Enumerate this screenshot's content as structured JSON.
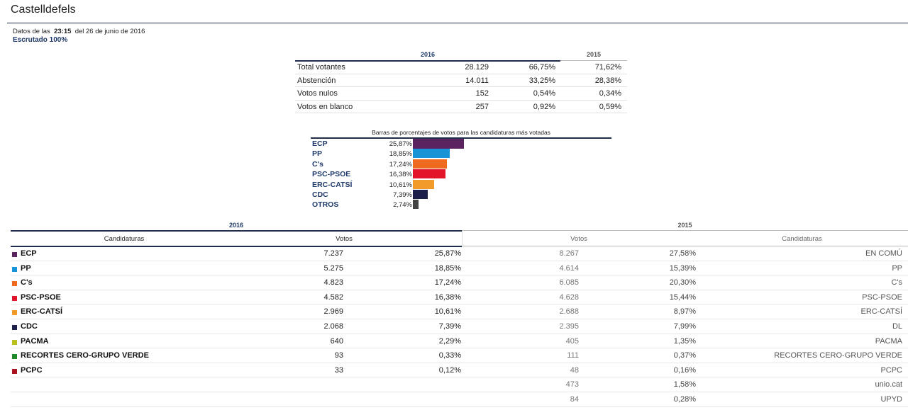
{
  "header": {
    "title": "Castelldefels",
    "data_prefix": "Datos de las",
    "time": "23:15",
    "date_text": "del 26 de junio de 2016",
    "scrutiny": "Escrutado 100%"
  },
  "summary": {
    "year_current": "2016",
    "year_previous": "2015",
    "rows": [
      {
        "label": "Total votantes",
        "count": "28.129",
        "pct_2016": "66,75%",
        "pct_2015": "71,62%"
      },
      {
        "label": "Abstención",
        "count": "14.011",
        "pct_2016": "33,25%",
        "pct_2015": "28,38%"
      },
      {
        "label": "Votos nulos",
        "count": "152",
        "pct_2016": "0,54%",
        "pct_2015": "0,34%"
      },
      {
        "label": "Votos en blanco",
        "count": "257",
        "pct_2016": "0,92%",
        "pct_2015": "0,59%"
      }
    ]
  },
  "chart_data": {
    "type": "bar",
    "title": "Barras de porcentajes de votos para las candidaturas más votadas",
    "categories": [
      "ECP",
      "PP",
      "C's",
      "PSC-PSOE",
      "ERC-CATSÍ",
      "CDC",
      "OTROS"
    ],
    "labels": [
      "25,87%",
      "18,85%",
      "17,24%",
      "16,38%",
      "10,61%",
      "7,39%",
      "2,74%"
    ],
    "values": [
      25.87,
      18.85,
      17.24,
      16.38,
      10.61,
      7.39,
      2.74
    ],
    "colors": [
      "#5b2360",
      "#1794d6",
      "#ef6a1d",
      "#e3152a",
      "#f29b2a",
      "#1c1f4a",
      "#444444"
    ],
    "xlim": [
      0,
      25.87
    ]
  },
  "results": {
    "year_current": "2016",
    "year_previous": "2015",
    "col_candidaturas": "Candidaturas",
    "col_votos": "Votos",
    "rows": [
      {
        "party": "ECP",
        "color": "#5b2360",
        "votes_2016": "7.237",
        "pct_2016": "25,87%",
        "votes_2015": "8.267",
        "pct_2015": "27,58%",
        "party_2015": "EN COMÚ"
      },
      {
        "party": "PP",
        "color": "#1794d6",
        "votes_2016": "5.275",
        "pct_2016": "18,85%",
        "votes_2015": "4.614",
        "pct_2015": "15,39%",
        "party_2015": "PP"
      },
      {
        "party": "C's",
        "color": "#ef6a1d",
        "votes_2016": "4.823",
        "pct_2016": "17,24%",
        "votes_2015": "6.085",
        "pct_2015": "20,30%",
        "party_2015": "C's"
      },
      {
        "party": "PSC-PSOE",
        "color": "#e3152a",
        "votes_2016": "4.582",
        "pct_2016": "16,38%",
        "votes_2015": "4.628",
        "pct_2015": "15,44%",
        "party_2015": "PSC-PSOE"
      },
      {
        "party": "ERC-CATSÍ",
        "color": "#f29b2a",
        "votes_2016": "2.969",
        "pct_2016": "10,61%",
        "votes_2015": "2.688",
        "pct_2015": "8,97%",
        "party_2015": "ERC-CATSÍ"
      },
      {
        "party": "CDC",
        "color": "#1c1f4a",
        "votes_2016": "2.068",
        "pct_2016": "7,39%",
        "votes_2015": "2.395",
        "pct_2015": "7,99%",
        "party_2015": "DL"
      },
      {
        "party": "PACMA",
        "color": "#b9bf1f",
        "votes_2016": "640",
        "pct_2016": "2,29%",
        "votes_2015": "405",
        "pct_2015": "1,35%",
        "party_2015": "PACMA"
      },
      {
        "party": "RECORTES CERO-GRUPO VERDE",
        "color": "#1f8a2a",
        "votes_2016": "93",
        "pct_2016": "0,33%",
        "votes_2015": "111",
        "pct_2015": "0,37%",
        "party_2015": "RECORTES CERO-GRUPO VERDE"
      },
      {
        "party": "PCPC",
        "color": "#a8141f",
        "votes_2016": "33",
        "pct_2016": "0,12%",
        "votes_2015": "48",
        "pct_2015": "0,16%",
        "party_2015": "PCPC"
      },
      {
        "party": "",
        "color": "",
        "votes_2016": "",
        "pct_2016": "",
        "votes_2015": "473",
        "pct_2015": "1,58%",
        "party_2015": "unio.cat"
      },
      {
        "party": "",
        "color": "",
        "votes_2016": "",
        "pct_2016": "",
        "votes_2015": "84",
        "pct_2015": "0,28%",
        "party_2015": "UPYD"
      }
    ]
  }
}
